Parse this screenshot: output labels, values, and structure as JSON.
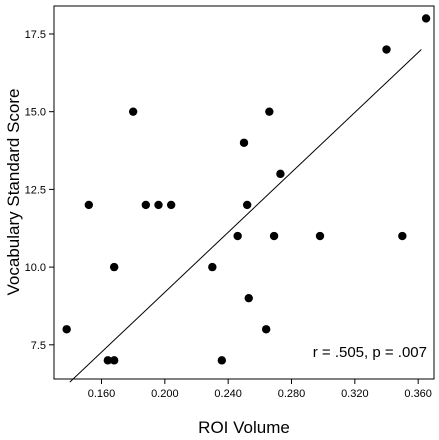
{
  "chart_data": {
    "type": "scatter",
    "title": "",
    "xlabel": "ROI Volume",
    "ylabel": "Vocabulary Standard Score",
    "xlim": [
      0.13,
      0.37
    ],
    "ylim": [
      6.4,
      18.4
    ],
    "x_ticks": [
      "0.160",
      "0.200",
      "0.240",
      "0.280",
      "0.320",
      "0.360"
    ],
    "y_ticks": [
      "7.5",
      "10.0",
      "12.5",
      "15.0",
      "17.5"
    ],
    "grid": false,
    "legend": "none",
    "annotation": "r = .505, p = .007",
    "point_color": "#000000",
    "points": [
      {
        "x": 0.138,
        "y": 8
      },
      {
        "x": 0.152,
        "y": 12
      },
      {
        "x": 0.164,
        "y": 7
      },
      {
        "x": 0.168,
        "y": 7
      },
      {
        "x": 0.168,
        "y": 10
      },
      {
        "x": 0.18,
        "y": 15
      },
      {
        "x": 0.188,
        "y": 12
      },
      {
        "x": 0.196,
        "y": 12
      },
      {
        "x": 0.204,
        "y": 12
      },
      {
        "x": 0.23,
        "y": 10
      },
      {
        "x": 0.236,
        "y": 7
      },
      {
        "x": 0.246,
        "y": 11
      },
      {
        "x": 0.25,
        "y": 14
      },
      {
        "x": 0.252,
        "y": 12
      },
      {
        "x": 0.253,
        "y": 9
      },
      {
        "x": 0.264,
        "y": 8
      },
      {
        "x": 0.266,
        "y": 15
      },
      {
        "x": 0.269,
        "y": 11
      },
      {
        "x": 0.273,
        "y": 13
      },
      {
        "x": 0.298,
        "y": 11
      },
      {
        "x": 0.34,
        "y": 17
      },
      {
        "x": 0.35,
        "y": 11
      },
      {
        "x": 0.365,
        "y": 18
      }
    ],
    "fit_line": {
      "x": [
        0.14,
        0.362
      ],
      "y": [
        6.3,
        17.0
      ]
    }
  }
}
